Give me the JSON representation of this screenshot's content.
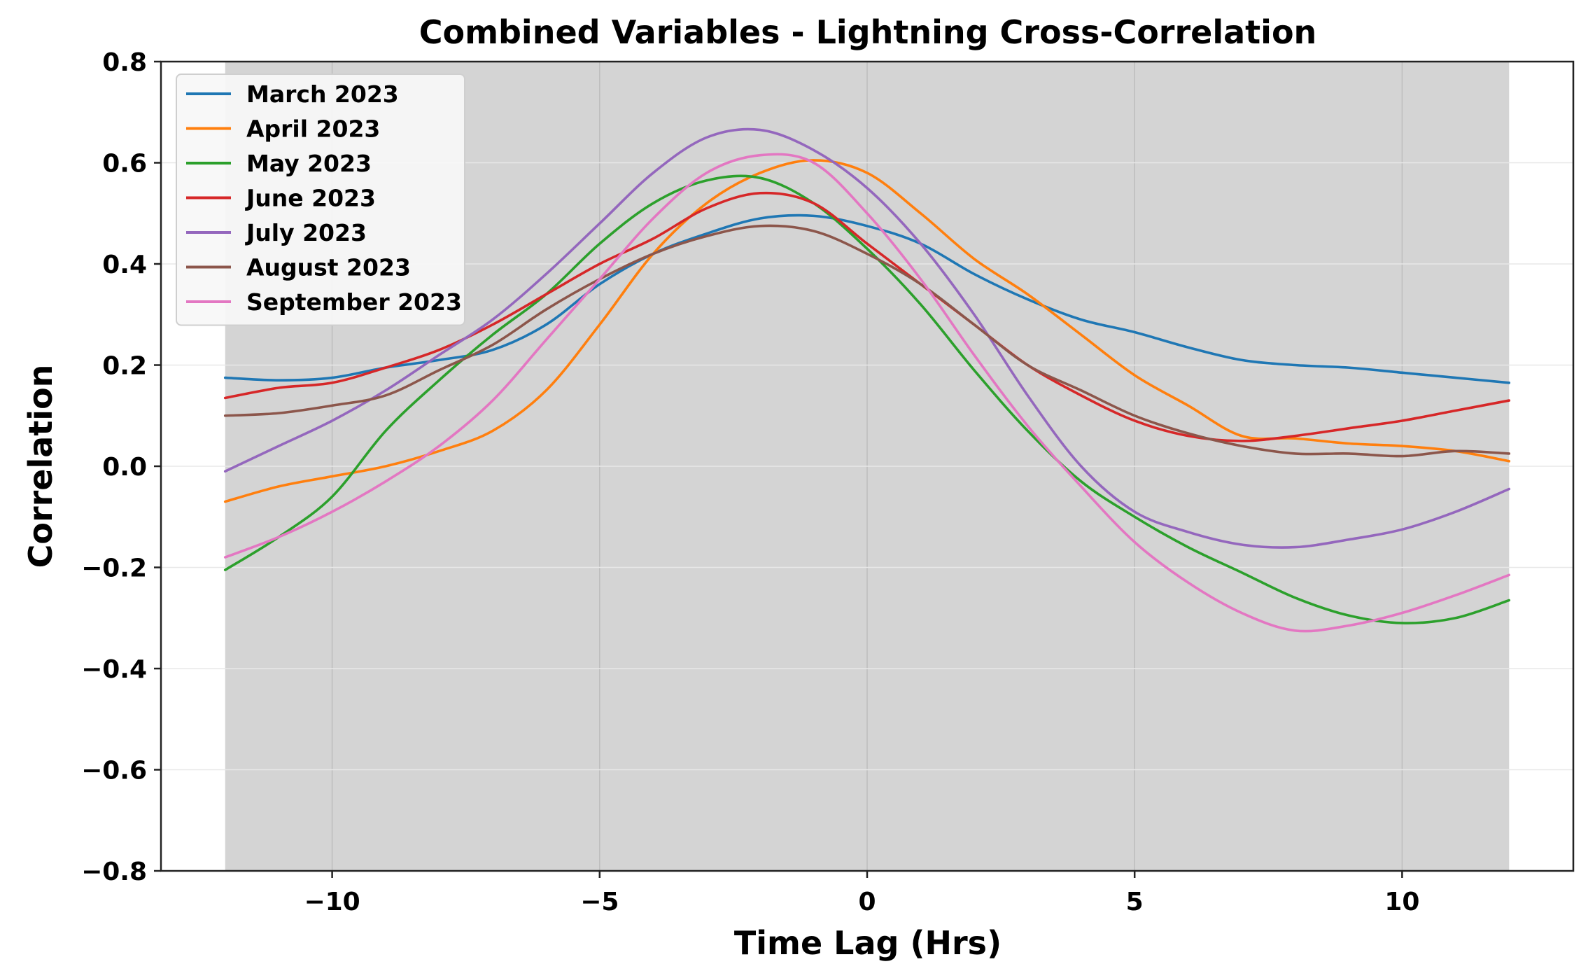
{
  "chart_data": {
    "type": "line",
    "title": "Combined Variables - Lightning Cross-Correlation",
    "xlabel": "Time Lag (Hrs)",
    "ylabel": "Correlation",
    "xlim": [
      -13.2,
      13.2
    ],
    "ylim": [
      -0.8,
      0.8
    ],
    "xticks": [
      -10,
      -5,
      0,
      5,
      10
    ],
    "xtick_labels": [
      "−10",
      "−5",
      "0",
      "5",
      "10"
    ],
    "yticks": [
      -0.8,
      -0.6,
      -0.4,
      -0.2,
      0.0,
      0.2,
      0.4,
      0.6,
      0.8
    ],
    "ytick_labels": [
      "−0.8",
      "−0.6",
      "−0.4",
      "−0.2",
      "0.0",
      "0.2",
      "0.4",
      "0.6",
      "0.8"
    ],
    "grid": true,
    "shaded_region": {
      "x_start": -12,
      "x_end": 12,
      "color": "#d4d4d4"
    },
    "legend_position": "upper-left",
    "x": [
      -12,
      -11,
      -10,
      -9,
      -8,
      -7,
      -6,
      -5,
      -4,
      -3,
      -2,
      -1,
      0,
      1,
      2,
      3,
      4,
      5,
      6,
      7,
      8,
      9,
      10,
      11,
      12
    ],
    "series": [
      {
        "name": "March 2023",
        "color": "#1f77b4",
        "values": [
          0.175,
          0.17,
          0.175,
          0.195,
          0.21,
          0.23,
          0.28,
          0.36,
          0.42,
          0.46,
          0.49,
          0.495,
          0.475,
          0.44,
          0.38,
          0.33,
          0.29,
          0.265,
          0.235,
          0.21,
          0.2,
          0.195,
          0.185,
          0.175,
          0.165
        ]
      },
      {
        "name": "April 2023",
        "color": "#ff7f0e",
        "values": [
          -0.07,
          -0.04,
          -0.02,
          0.0,
          0.03,
          0.07,
          0.15,
          0.28,
          0.42,
          0.52,
          0.58,
          0.605,
          0.58,
          0.5,
          0.41,
          0.34,
          0.26,
          0.18,
          0.12,
          0.06,
          0.055,
          0.045,
          0.04,
          0.03,
          0.01
        ]
      },
      {
        "name": "May 2023",
        "color": "#2ca02c",
        "values": [
          -0.205,
          -0.14,
          -0.06,
          0.07,
          0.17,
          0.26,
          0.34,
          0.44,
          0.52,
          0.565,
          0.57,
          0.52,
          0.43,
          0.32,
          0.19,
          0.07,
          -0.03,
          -0.1,
          -0.16,
          -0.21,
          -0.26,
          -0.295,
          -0.31,
          -0.3,
          -0.265
        ]
      },
      {
        "name": "June 2023",
        "color": "#d62728",
        "values": [
          0.135,
          0.155,
          0.165,
          0.195,
          0.23,
          0.28,
          0.34,
          0.4,
          0.45,
          0.51,
          0.54,
          0.52,
          0.44,
          0.36,
          0.28,
          0.2,
          0.14,
          0.09,
          0.06,
          0.05,
          0.06,
          0.075,
          0.09,
          0.11,
          0.13
        ]
      },
      {
        "name": "July 2023",
        "color": "#9467bd",
        "values": [
          -0.01,
          0.04,
          0.09,
          0.15,
          0.22,
          0.29,
          0.38,
          0.48,
          0.58,
          0.65,
          0.665,
          0.625,
          0.55,
          0.44,
          0.3,
          0.14,
          0.0,
          -0.09,
          -0.13,
          -0.155,
          -0.16,
          -0.145,
          -0.125,
          -0.09,
          -0.045
        ]
      },
      {
        "name": "August 2023",
        "color": "#8c564b",
        "values": [
          0.1,
          0.105,
          0.12,
          0.14,
          0.19,
          0.24,
          0.31,
          0.37,
          0.42,
          0.455,
          0.475,
          0.465,
          0.42,
          0.36,
          0.28,
          0.2,
          0.15,
          0.1,
          0.065,
          0.04,
          0.025,
          0.025,
          0.02,
          0.03,
          0.025
        ]
      },
      {
        "name": "September 2023",
        "color": "#e377c2",
        "values": [
          -0.18,
          -0.14,
          -0.09,
          -0.03,
          0.04,
          0.13,
          0.25,
          0.37,
          0.49,
          0.58,
          0.615,
          0.6,
          0.5,
          0.37,
          0.22,
          0.08,
          -0.04,
          -0.15,
          -0.23,
          -0.29,
          -0.325,
          -0.315,
          -0.29,
          -0.255,
          -0.215
        ]
      }
    ]
  }
}
